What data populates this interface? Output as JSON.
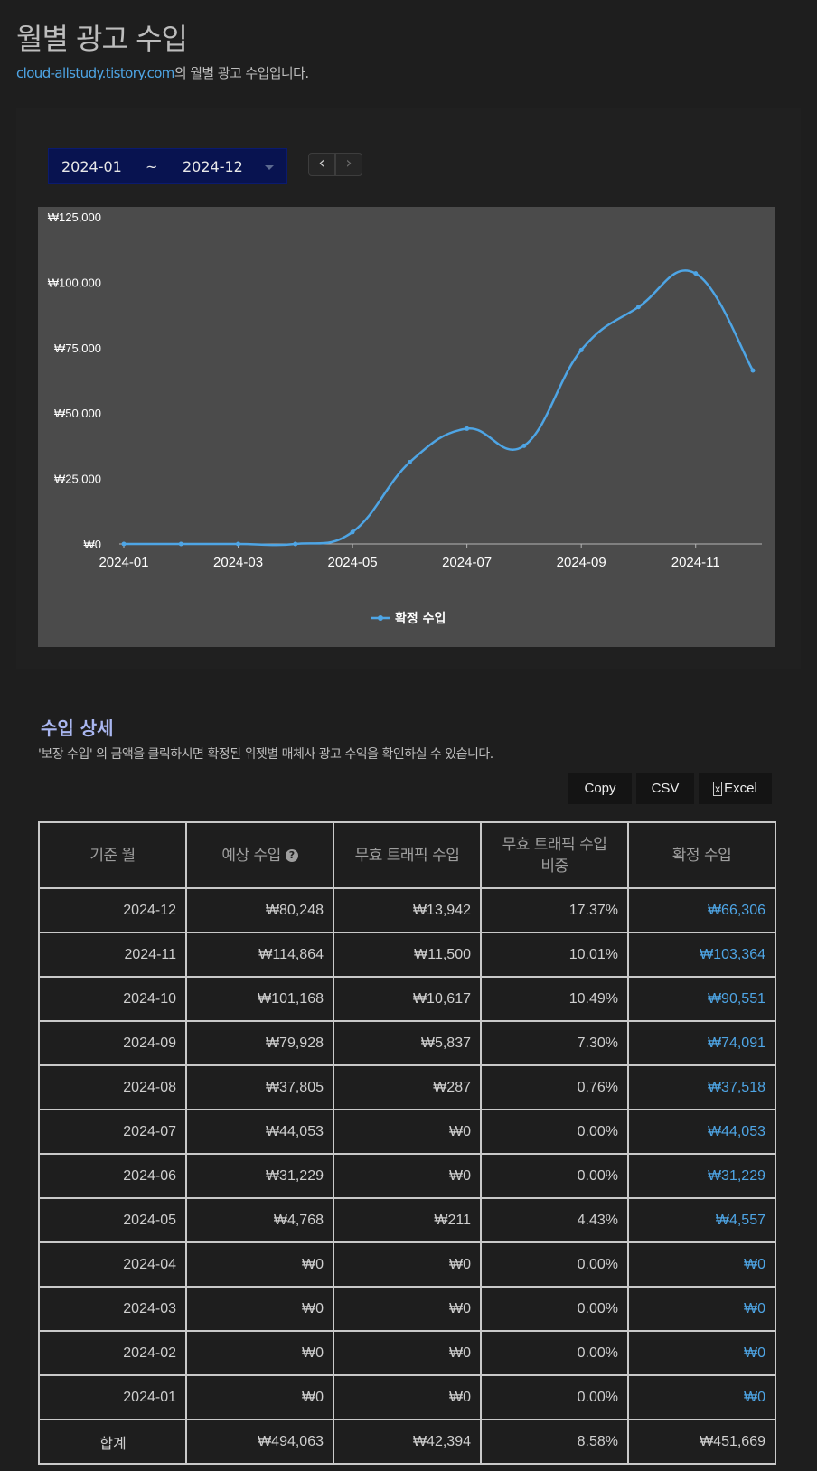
{
  "header": {
    "title": "월별 광고 수입",
    "blog_link": "cloud-allstudy.tistory.com",
    "subtitle_suffix": "의 월별 광고 수입입니다."
  },
  "filter": {
    "from": "2024-01",
    "separator": "~",
    "to": "2024-12",
    "prev_icon": "chevron-left-icon",
    "next_icon": "chevron-right-icon"
  },
  "chart_data": {
    "type": "line",
    "title": "",
    "x": [
      "2024-01",
      "2024-02",
      "2024-03",
      "2024-04",
      "2024-05",
      "2024-06",
      "2024-07",
      "2024-08",
      "2024-09",
      "2024-10",
      "2024-11",
      "2024-12"
    ],
    "x_tick_labels": [
      "2024-01",
      "2024-03",
      "2024-05",
      "2024-07",
      "2024-09",
      "2024-11"
    ],
    "y_tick_labels": [
      "₩0",
      "₩25,000",
      "₩50,000",
      "₩75,000",
      "₩100,000",
      "₩125,000"
    ],
    "ylim": [
      0,
      125000
    ],
    "series": [
      {
        "name": "확정 수입",
        "color": "#4ea5e5",
        "values": [
          0,
          0,
          0,
          0,
          4557,
          31229,
          44053,
          37518,
          74091,
          90551,
          103364,
          66306
        ]
      }
    ],
    "legend_position": "bottom-center",
    "grid": false
  },
  "details": {
    "title": "수입 상세",
    "description": "'보장 수입' 의 금액을 클릭하시면 확정된 위젯별 매체사 광고 수익을 확인하실 수 있습니다.",
    "buttons": {
      "copy": "Copy",
      "csv": "CSV",
      "excel": "Excel"
    },
    "columns": [
      "기준 월",
      "예상 수입",
      "무효 트래픽 수입",
      "무효 트래픽 수입 비중",
      "확정 수입"
    ],
    "columns_display": {
      "col4_line1": "무효 트래픽 수입",
      "col4_line2": "비중"
    },
    "rows": [
      [
        "2024-12",
        "₩80,248",
        "₩13,942",
        "17.37%",
        "₩66,306"
      ],
      [
        "2024-11",
        "₩114,864",
        "₩11,500",
        "10.01%",
        "₩103,364"
      ],
      [
        "2024-10",
        "₩101,168",
        "₩10,617",
        "10.49%",
        "₩90,551"
      ],
      [
        "2024-09",
        "₩79,928",
        "₩5,837",
        "7.30%",
        "₩74,091"
      ],
      [
        "2024-08",
        "₩37,805",
        "₩287",
        "0.76%",
        "₩37,518"
      ],
      [
        "2024-07",
        "₩44,053",
        "₩0",
        "0.00%",
        "₩44,053"
      ],
      [
        "2024-06",
        "₩31,229",
        "₩0",
        "0.00%",
        "₩31,229"
      ],
      [
        "2024-05",
        "₩4,768",
        "₩211",
        "4.43%",
        "₩4,557"
      ],
      [
        "2024-04",
        "₩0",
        "₩0",
        "0.00%",
        "₩0"
      ],
      [
        "2024-03",
        "₩0",
        "₩0",
        "0.00%",
        "₩0"
      ],
      [
        "2024-02",
        "₩0",
        "₩0",
        "0.00%",
        "₩0"
      ],
      [
        "2024-01",
        "₩0",
        "₩0",
        "0.00%",
        "₩0"
      ]
    ],
    "total": [
      "합계",
      "₩494,063",
      "₩42,394",
      "8.58%",
      "₩451,669"
    ]
  }
}
